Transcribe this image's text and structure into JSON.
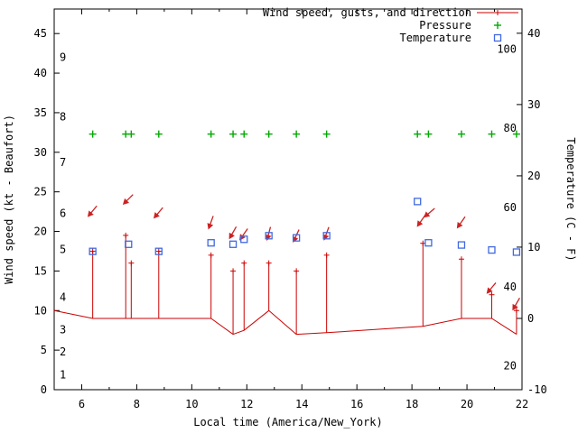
{
  "chart_data": {
    "type": "line",
    "title": "",
    "xlabel": "Local time (America/New_York)",
    "ylabel_left": "Wind speed (kt - Beaufort)",
    "ylabel_right": "Temperature (C - F)",
    "x": {
      "min": 5,
      "max": 22,
      "major_ticks": [
        6,
        8,
        10,
        12,
        14,
        16,
        18,
        20,
        22
      ],
      "minor_ticks": [
        7,
        9,
        11,
        13,
        15,
        17,
        19,
        21
      ]
    },
    "y_left": {
      "min": 0,
      "max": 48.1,
      "ticks": [
        0,
        5,
        10,
        15,
        20,
        25,
        30,
        35,
        40,
        45
      ],
      "beaufort_color": "#8b0000",
      "beaufort": [
        {
          "label": "1",
          "kt": 1.9
        },
        {
          "label": "2",
          "kt": 4.8
        },
        {
          "label": "3",
          "kt": 7.6
        },
        {
          "label": "4",
          "kt": 11.7
        },
        {
          "label": "5",
          "kt": 17.7
        },
        {
          "label": "6",
          "kt": 22.3
        },
        {
          "label": "7",
          "kt": 28.7
        },
        {
          "label": "8",
          "kt": 34.5
        },
        {
          "label": "9",
          "kt": 42.0
        }
      ]
    },
    "y_right": {
      "min": -10,
      "max": 43.4,
      "ticks": [
        -10,
        0,
        10,
        20,
        30,
        40
      ],
      "fahrenheit": [
        20,
        40,
        60,
        80,
        100
      ]
    },
    "legend": [
      {
        "id": "wind",
        "label": "Wind speed, gusts, and direction",
        "text_color": "#990000",
        "color": "#cc0000",
        "marker": "line-plus"
      },
      {
        "id": "pressure",
        "label": "Pressure",
        "text_color": "#008000",
        "color": "#00aa00",
        "marker": "plus"
      },
      {
        "id": "temperature",
        "label": "Temperature",
        "text_color": "#0000cd",
        "color": "#4169e1",
        "marker": "square"
      }
    ],
    "series": {
      "wind": {
        "name": "Wind speed (kt)",
        "color": "#cc0000",
        "points": [
          [
            5.0,
            10
          ],
          [
            6.4,
            9
          ],
          [
            7.6,
            9
          ],
          [
            7.8,
            9
          ],
          [
            8.8,
            9
          ],
          [
            10.7,
            9
          ],
          [
            11.5,
            7
          ],
          [
            11.9,
            7.5
          ],
          [
            12.8,
            10
          ],
          [
            13.8,
            7
          ],
          [
            14.9,
            7.2
          ],
          [
            18.4,
            8
          ],
          [
            19.8,
            9
          ],
          [
            20.9,
            9
          ],
          [
            21.8,
            7
          ]
        ]
      },
      "gusts": {
        "name": "Wind gusts (kt)",
        "color": "#cc0000",
        "points": [
          [
            6.4,
            17.5
          ],
          [
            7.6,
            19.5
          ],
          [
            7.8,
            16
          ],
          [
            8.8,
            17.5
          ],
          [
            10.7,
            17
          ],
          [
            11.5,
            15
          ],
          [
            11.9,
            16
          ],
          [
            12.8,
            16
          ],
          [
            13.8,
            15
          ],
          [
            14.9,
            17
          ],
          [
            18.4,
            18.5
          ],
          [
            19.8,
            16.5
          ],
          [
            20.9,
            12
          ],
          [
            21.8,
            10
          ]
        ]
      },
      "arrows": {
        "name": "Wind direction arrows",
        "color": "#cc2222",
        "points": [
          [
            6.4,
            22.6,
            40
          ],
          [
            7.7,
            24.1,
            45
          ],
          [
            8.8,
            22.4,
            40
          ],
          [
            10.7,
            21.2,
            20
          ],
          [
            11.5,
            19.9,
            30
          ],
          [
            11.9,
            19.7,
            35
          ],
          [
            12.8,
            19.8,
            15
          ],
          [
            13.8,
            19.5,
            25
          ],
          [
            14.9,
            19.8,
            20
          ],
          [
            18.35,
            21.4,
            35
          ],
          [
            18.65,
            22.4,
            50
          ],
          [
            19.8,
            21.2,
            35
          ],
          [
            20.9,
            12.9,
            40
          ],
          [
            21.8,
            10.9,
            30
          ]
        ]
      },
      "pressure": {
        "name": "Pressure",
        "color": "#00aa00",
        "level_kt": 32.3,
        "times": [
          6.4,
          7.6,
          7.8,
          8.8,
          10.7,
          11.5,
          11.9,
          12.8,
          13.8,
          14.9,
          18.2,
          18.6,
          19.8,
          20.9,
          21.8
        ]
      },
      "temperature": {
        "name": "Temperature (C)",
        "color": "#4169e1",
        "points": [
          [
            6.4,
            9.4
          ],
          [
            7.7,
            10.4
          ],
          [
            8.8,
            9.4
          ],
          [
            10.7,
            10.6
          ],
          [
            11.5,
            10.4
          ],
          [
            11.9,
            11.1
          ],
          [
            12.8,
            11.6
          ],
          [
            13.8,
            11.3
          ],
          [
            14.9,
            11.6
          ],
          [
            18.2,
            16.4
          ],
          [
            18.6,
            10.6
          ],
          [
            19.8,
            10.3
          ],
          [
            20.9,
            9.6
          ],
          [
            21.8,
            9.3
          ]
        ]
      }
    }
  }
}
